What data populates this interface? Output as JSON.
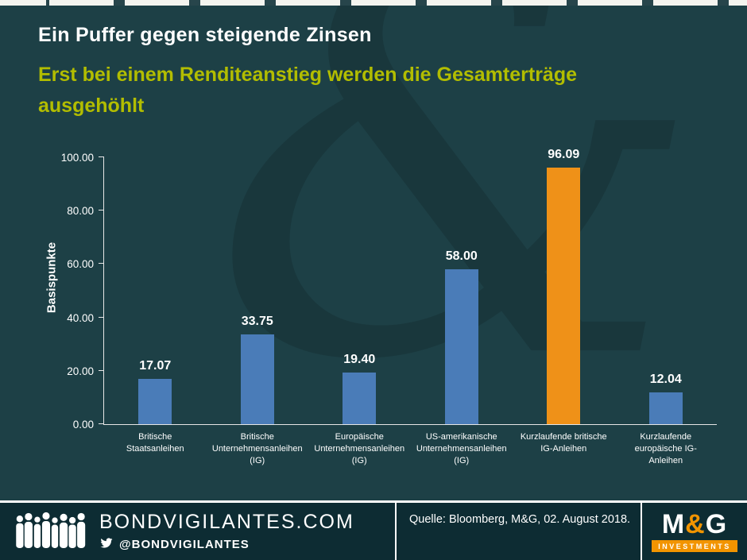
{
  "header": {
    "title": "Ein Puffer gegen steigende Zinsen",
    "subtitle": "Erst bei einem Renditeanstieg werden die Gesamterträge ausgehöhlt"
  },
  "chart_data": {
    "type": "bar",
    "title": "Ein Puffer gegen steigende Zinsen",
    "subtitle": "Erst bei einem Renditeanstieg werden die Gesamterträge ausgehöhlt",
    "ylabel": "Basispunkte",
    "xlabel": "",
    "ylim": [
      0,
      100
    ],
    "ytick_step": 20,
    "ytick_labels": [
      "0.00",
      "20.00",
      "40.00",
      "60.00",
      "80.00",
      "100.00"
    ],
    "grid": false,
    "legend": "none",
    "categories": [
      "Britische\nStaatsanleihen",
      "Britische\nUnternehmensanleihen\n(IG)",
      "Europäische\nUnternehmensanleihen\n(IG)",
      "US-amerikanische\nUnternehmensanleihen\n(IG)",
      "Kurzlaufende britische\nIG-Anleihen",
      "Kurzlaufende\neuropäische IG-\nAnleihen"
    ],
    "values": [
      17.07,
      33.75,
      19.4,
      58.0,
      96.09,
      12.04
    ],
    "value_labels": [
      "17.07",
      "33.75",
      "19.40",
      "58.00",
      "96.09",
      "12.04"
    ],
    "bar_colors": [
      "#4a7cb8",
      "#4a7cb8",
      "#4a7cb8",
      "#4a7cb8",
      "#ef9118",
      "#4a7cb8"
    ]
  },
  "footer": {
    "site": "BONDVIGILANTES.COM",
    "twitter_handle": "@BONDVIGILANTES",
    "source": "Quelle: Bloomberg, M&G, 02. August 2018.",
    "brand_m": "M",
    "brand_amp": "&",
    "brand_g": "G",
    "brand_sub": "INVESTMENTS"
  },
  "colors": {
    "background": "#1d4046",
    "footer_background": "#0d2c33",
    "subtitle_green": "#b2bd00",
    "bar_blue": "#4a7cb8",
    "bar_orange": "#ef9118",
    "brand_orange": "#f29400",
    "text": "#ffffff"
  },
  "watermark": {
    "glyph": "&"
  }
}
